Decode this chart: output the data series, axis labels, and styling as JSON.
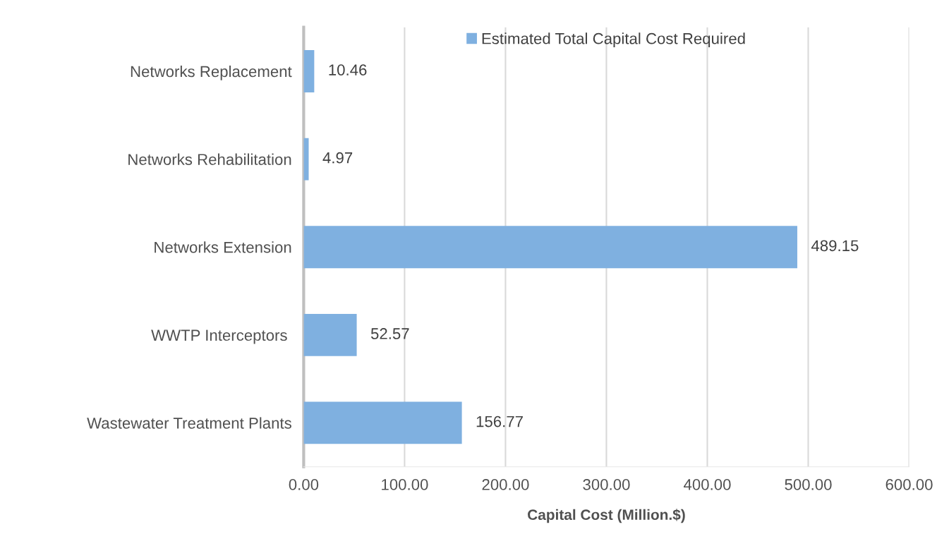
{
  "chart_data": {
    "type": "bar",
    "orientation": "horizontal",
    "categories": [
      "Networks Replacement",
      "Networks Rehabilitation",
      "Networks Extension",
      "WWTP Interceptors ",
      "Wastewater Treatment Plants"
    ],
    "series": [
      {
        "name": "Estimated Total Capital Cost Required",
        "color": "#7fb0e0",
        "values": [
          10.46,
          4.97,
          489.15,
          52.57,
          156.77
        ]
      }
    ],
    "xlabel": "Capital Cost (Million.$)",
    "xlim": [
      0,
      600
    ],
    "xticks": [
      {
        "value": 0,
        "label": "0.00"
      },
      {
        "value": 100,
        "label": "100.00"
      },
      {
        "value": 200,
        "label": "200.00"
      },
      {
        "value": 300,
        "label": "300.00"
      },
      {
        "value": 400,
        "label": "400.00"
      },
      {
        "value": 500,
        "label": "500.00"
      },
      {
        "value": 600,
        "label": "600.00"
      }
    ],
    "data_labels": true,
    "grid": "x",
    "legend": "top"
  }
}
